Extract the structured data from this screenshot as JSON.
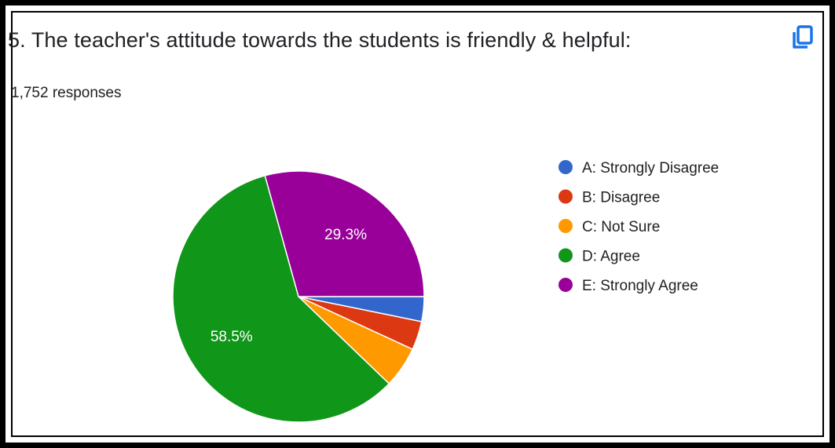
{
  "question": {
    "title": "5. The teacher's attitude towards the students is friendly & helpful:",
    "responses_text": "1,752 responses"
  },
  "icons": {
    "copy": "copy-icon"
  },
  "colors": {
    "accent": "#1a73e8",
    "text": "#202124",
    "slice_border": "#ffffff"
  },
  "chart_data": {
    "type": "pie",
    "title": "5. The teacher's attitude towards the students is friendly & helpful:",
    "legend_position": "right",
    "slices": [
      {
        "label": "A: Strongly Disagree",
        "value": 3.2,
        "color": "#3366cc",
        "show_label": false
      },
      {
        "label": "B: Disagree",
        "value": 3.7,
        "color": "#dc3912",
        "show_label": false
      },
      {
        "label": "C: Not Sure",
        "value": 5.3,
        "color": "#ff9900",
        "show_label": false
      },
      {
        "label": "D: Agree",
        "value": 58.5,
        "color": "#109618",
        "show_label": true,
        "label_text": "58.5%"
      },
      {
        "label": "E: Strongly Agree",
        "value": 29.3,
        "color": "#990099",
        "show_label": true,
        "label_text": "29.3%"
      }
    ]
  }
}
